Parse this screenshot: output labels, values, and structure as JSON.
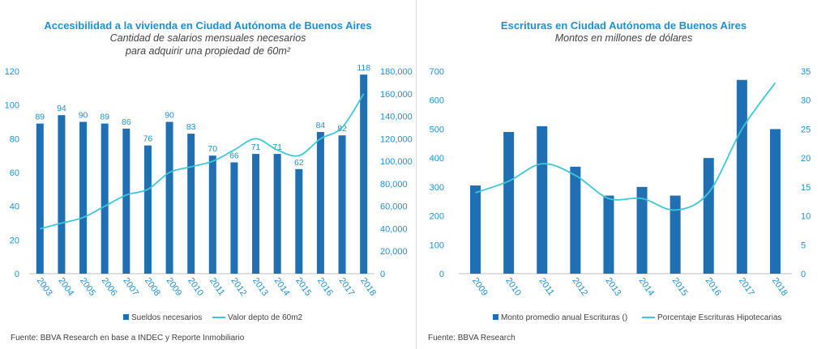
{
  "chart_data": [
    {
      "type": "bar",
      "title": "Accesibilidad a la vivienda en Ciudad Autónoma de Buenos Aires",
      "subtitle_lines": [
        "Cantidad de salarios mensuales necesarios",
        "para adquirir una propiedad de 60m²"
      ],
      "categories": [
        "2003",
        "2004",
        "2005",
        "2006",
        "2007",
        "2008",
        "2009",
        "2010",
        "2011",
        "2012",
        "2013",
        "2014",
        "2015",
        "2016",
        "2017",
        "2018"
      ],
      "series": [
        {
          "name": "Sueldos necesarios",
          "kind": "bar",
          "axis": "left",
          "values": [
            89,
            94,
            90,
            89,
            86,
            76,
            90,
            83,
            70,
            66,
            71,
            71,
            62,
            84,
            82,
            118
          ]
        },
        {
          "name": "Valor depto de 60m2",
          "kind": "line",
          "axis": "right",
          "values": [
            40000,
            45000,
            50000,
            60000,
            70000,
            75000,
            90000,
            95000,
            100000,
            110000,
            120000,
            110000,
            105000,
            120000,
            130000,
            160000
          ]
        }
      ],
      "ylim": [
        0,
        120
      ],
      "yticks": [
        0,
        20,
        40,
        60,
        80,
        100,
        120
      ],
      "y2lim": [
        0,
        180000
      ],
      "y2ticks": [
        0,
        20000,
        40000,
        60000,
        80000,
        100000,
        120000,
        140000,
        160000,
        180000
      ],
      "data_labels": true,
      "legend": "bottom",
      "colors": {
        "bar": "#1f6fb4",
        "line": "#3cc8d8",
        "text": "#1f8fcf"
      },
      "source": "Fuente: BBVA Research en base a INDEC y Reporte Inmobiliario"
    },
    {
      "type": "bar",
      "title": "Escrituras en Ciudad Autónoma de Buenos Aires",
      "subtitle_lines": [
        "Montos en millones de dólares"
      ],
      "categories": [
        "2009",
        "2010",
        "2011",
        "2012",
        "2013",
        "2014",
        "2015",
        "2016",
        "2017",
        "2018"
      ],
      "series": [
        {
          "name": "Monto promedio anual Escrituras ()",
          "kind": "bar",
          "axis": "left",
          "values": [
            305,
            490,
            510,
            370,
            270,
            300,
            270,
            400,
            670,
            500
          ]
        },
        {
          "name": "Porcentaje Escrituras Hipotecarias",
          "kind": "line",
          "axis": "right",
          "values": [
            14,
            16,
            19,
            17,
            13,
            13,
            11,
            14,
            25,
            33
          ]
        }
      ],
      "ylim": [
        0,
        700
      ],
      "yticks": [
        0,
        100,
        200,
        300,
        400,
        500,
        600,
        700
      ],
      "y2lim": [
        0,
        35
      ],
      "y2ticks": [
        0,
        5,
        10,
        15,
        20,
        25,
        30,
        35
      ],
      "data_labels": false,
      "legend": "bottom",
      "colors": {
        "bar": "#1f6fb4",
        "line": "#3cc8d8",
        "text": "#1f8fcf"
      },
      "source": "Fuente: BBVA Research"
    }
  ]
}
